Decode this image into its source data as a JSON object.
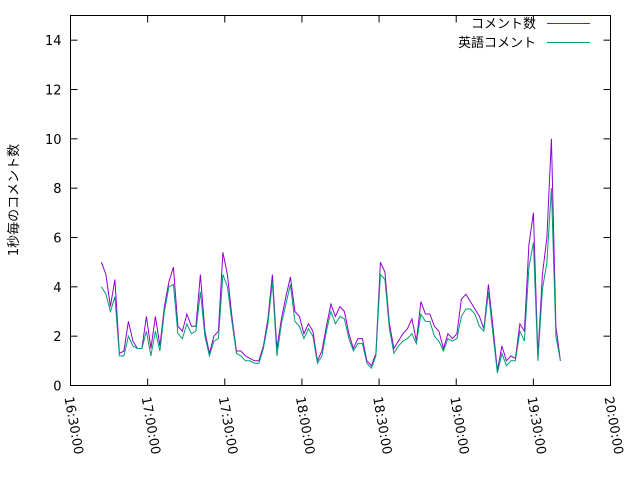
{
  "chart_data": {
    "type": "line",
    "title": "",
    "xlabel": "",
    "ylabel": "1秒毎のコメント数",
    "ylim": [
      0,
      15
    ],
    "yticks": [
      0,
      2,
      4,
      6,
      8,
      10,
      12,
      14
    ],
    "xlim": [
      "16:30:00",
      "20:00:00"
    ],
    "xticks": [
      "16:30:00",
      "17:00:00",
      "17:30:00",
      "18:00:00",
      "18:30:00",
      "19:00:00",
      "19:30:00",
      "20:00:00"
    ],
    "grid": false,
    "legend": "top-right",
    "x": [
      "16:42:00",
      "16:43:45",
      "16:45:30",
      "16:47:15",
      "16:49:00",
      "16:50:45",
      "16:52:30",
      "16:54:15",
      "16:56:00",
      "16:57:45",
      "16:59:30",
      "17:01:15",
      "17:03:00",
      "17:04:45",
      "17:06:30",
      "17:08:15",
      "17:10:00",
      "17:11:45",
      "17:13:30",
      "17:15:15",
      "17:17:00",
      "17:18:45",
      "17:20:30",
      "17:22:15",
      "17:24:00",
      "17:25:45",
      "17:27:30",
      "17:29:15",
      "17:31:00",
      "17:32:45",
      "17:34:30",
      "17:36:15",
      "17:38:00",
      "17:39:45",
      "17:41:30",
      "17:43:15",
      "17:45:00",
      "17:46:45",
      "17:48:30",
      "17:50:15",
      "17:52:00",
      "17:53:45",
      "17:55:30",
      "17:57:15",
      "17:59:00",
      "18:00:45",
      "18:02:30",
      "18:04:15",
      "18:06:00",
      "18:07:45",
      "18:09:30",
      "18:11:15",
      "18:13:00",
      "18:14:45",
      "18:16:30",
      "18:18:15",
      "18:20:00",
      "18:21:45",
      "18:23:30",
      "18:25:15",
      "18:27:00",
      "18:28:45",
      "18:30:30",
      "18:32:15",
      "18:34:00",
      "18:35:45",
      "18:37:30",
      "18:39:15",
      "18:41:00",
      "18:42:45",
      "18:44:30",
      "18:46:15",
      "18:48:00",
      "18:49:45",
      "18:51:30",
      "18:53:15",
      "18:55:00",
      "18:56:45",
      "18:58:30",
      "19:00:15",
      "19:02:00",
      "19:03:45",
      "19:05:30",
      "19:07:15",
      "19:09:00",
      "19:10:45",
      "19:12:30",
      "19:14:15",
      "19:16:00",
      "19:17:45",
      "19:19:30",
      "19:21:15",
      "19:23:00",
      "19:24:45",
      "19:26:30",
      "19:28:15",
      "19:30:00",
      "19:31:45",
      "19:33:30",
      "19:35:15",
      "19:37:00",
      "19:38:45",
      "19:40:30"
    ],
    "series": [
      {
        "name": "コメント数",
        "color": "#9400d3",
        "values": [
          5.0,
          4.5,
          3.2,
          4.3,
          1.3,
          1.4,
          2.6,
          1.8,
          1.5,
          1.5,
          2.8,
          1.5,
          2.8,
          1.6,
          3.2,
          4.2,
          4.8,
          2.4,
          2.2,
          2.9,
          2.4,
          2.4,
          4.5,
          2.2,
          1.3,
          2.0,
          2.2,
          5.4,
          4.5,
          2.8,
          1.4,
          1.4,
          1.2,
          1.1,
          1.0,
          1.0,
          1.6,
          2.7,
          4.5,
          1.5,
          2.7,
          3.6,
          4.4,
          3.0,
          2.8,
          2.1,
          2.5,
          2.2,
          1.0,
          1.4,
          2.4,
          3.3,
          2.8,
          3.2,
          3.0,
          2.1,
          1.5,
          1.9,
          1.9,
          1.0,
          0.8,
          1.3,
          5.0,
          4.6,
          2.5,
          1.5,
          1.8,
          2.1,
          2.3,
          2.7,
          1.8,
          3.4,
          2.9,
          2.9,
          2.4,
          2.2,
          1.5,
          2.1,
          1.9,
          2.1,
          3.5,
          3.7,
          3.4,
          3.1,
          2.8,
          2.3,
          4.1,
          2.4,
          0.6,
          1.6,
          1.0,
          1.2,
          1.1,
          2.5,
          2.2,
          5.7,
          7.0,
          1.2,
          4.5,
          6.0,
          10.0,
          2.4,
          1.0
        ]
      },
      {
        "name": "英語コメント",
        "color": "#009e73",
        "values": [
          4.0,
          3.7,
          3.0,
          3.6,
          1.2,
          1.2,
          2.0,
          1.6,
          1.5,
          1.5,
          2.2,
          1.2,
          2.2,
          1.4,
          3.0,
          4.0,
          4.1,
          2.1,
          1.9,
          2.5,
          2.1,
          2.2,
          3.8,
          2.0,
          1.2,
          1.8,
          1.9,
          4.5,
          4.0,
          2.6,
          1.3,
          1.2,
          1.0,
          1.0,
          0.9,
          0.9,
          1.5,
          2.5,
          4.2,
          1.2,
          2.5,
          3.3,
          4.1,
          2.6,
          2.4,
          1.9,
          2.3,
          2.0,
          0.9,
          1.2,
          2.2,
          3.0,
          2.5,
          2.8,
          2.7,
          1.9,
          1.4,
          1.7,
          1.7,
          0.9,
          0.7,
          1.2,
          4.5,
          4.3,
          2.3,
          1.3,
          1.6,
          1.8,
          1.9,
          2.1,
          1.7,
          2.9,
          2.6,
          2.6,
          2.0,
          1.8,
          1.4,
          1.9,
          1.8,
          1.9,
          2.8,
          3.1,
          3.1,
          2.9,
          2.4,
          2.2,
          3.8,
          2.1,
          0.5,
          1.3,
          0.8,
          1.0,
          1.0,
          2.2,
          1.8,
          4.8,
          5.8,
          1.0,
          3.9,
          5.0,
          8.0,
          2.0,
          1.0
        ]
      }
    ]
  }
}
